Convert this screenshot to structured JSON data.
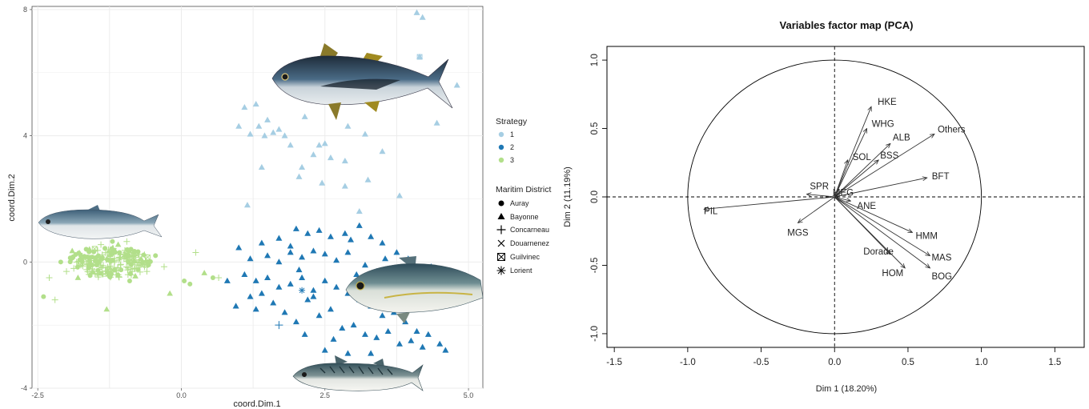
{
  "chart_data": [
    {
      "type": "scatter",
      "xlabel": "coord.Dim.1",
      "ylabel": "coord.Dim.2",
      "xlim": [
        -2.6,
        5.25
      ],
      "ylim": [
        -4,
        8.1
      ],
      "x_ticks": [
        "-2.5",
        "0.0",
        "2.5",
        "5.0"
      ],
      "x_tick_values": [
        -2.5,
        0,
        2.5,
        5
      ],
      "y_ticks": [
        "-4",
        "0",
        "4",
        "8"
      ],
      "y_tick_values": [
        -4,
        0,
        4,
        8
      ],
      "grid": true,
      "legend_position": "right",
      "colors": {
        "1": "#a6cee3",
        "2": "#1f78b4",
        "3": "#b2df8a"
      },
      "legends": [
        {
          "title": "Strategy",
          "entries": [
            "1",
            "2",
            "3"
          ]
        },
        {
          "title": "Maritim District",
          "entries": [
            "Auray",
            "Bayonne",
            "Concarneau",
            "Douarnenez",
            "Guilvinec",
            "Lorient"
          ]
        }
      ],
      "series": [
        {
          "strategy": "1",
          "points": [
            [
              4.1,
              7.9
            ],
            [
              4.2,
              7.75
            ],
            [
              4.15,
              6.5
            ],
            [
              4.8,
              5.6
            ],
            [
              4.45,
              4.4
            ],
            [
              1.3,
              5.0
            ],
            [
              1.1,
              4.9
            ],
            [
              1.5,
              4.5
            ],
            [
              1.35,
              4.3
            ],
            [
              1.7,
              4.2
            ],
            [
              1.6,
              4.1
            ],
            [
              1.2,
              4.05
            ],
            [
              1.45,
              4.0
            ],
            [
              1.8,
              4.0
            ],
            [
              2.15,
              4.6
            ],
            [
              2.9,
              4.3
            ],
            [
              3.2,
              4.05
            ],
            [
              1.0,
              4.3
            ],
            [
              1.9,
              3.7
            ],
            [
              2.4,
              3.7
            ],
            [
              2.5,
              3.75
            ],
            [
              2.3,
              3.4
            ],
            [
              2.6,
              3.3
            ],
            [
              2.85,
              3.2
            ],
            [
              3.5,
              3.5
            ],
            [
              1.4,
              3.0
            ],
            [
              2.1,
              3.0
            ],
            [
              2.05,
              2.7
            ],
            [
              2.45,
              2.5
            ],
            [
              2.85,
              2.4
            ],
            [
              3.25,
              2.6
            ],
            [
              3.8,
              2.1
            ],
            [
              1.15,
              1.8
            ],
            [
              3.1,
              1.6
            ]
          ]
        },
        {
          "strategy": "2",
          "points": [
            [
              0.8,
              -0.6
            ],
            [
              1.4,
              0.6
            ],
            [
              1.7,
              0.75
            ],
            [
              1.9,
              0.5
            ],
            [
              2.0,
              1.05
            ],
            [
              2.2,
              0.9
            ],
            [
              2.4,
              1.0
            ],
            [
              2.6,
              0.8
            ],
            [
              2.85,
              0.9
            ],
            [
              2.95,
              0.7
            ],
            [
              3.1,
              1.15
            ],
            [
              3.3,
              0.8
            ],
            [
              3.5,
              0.6
            ],
            [
              3.75,
              0.3
            ],
            [
              3.95,
              0.1
            ],
            [
              1.2,
              0.1
            ],
            [
              1.5,
              0.2
            ],
            [
              1.7,
              0.0
            ],
            [
              1.9,
              0.3
            ],
            [
              2.1,
              0.15
            ],
            [
              2.3,
              0.35
            ],
            [
              2.5,
              0.25
            ],
            [
              2.7,
              0.05
            ],
            [
              2.9,
              0.3
            ],
            [
              3.2,
              -0.1
            ],
            [
              3.4,
              -0.3
            ],
            [
              3.6,
              -0.5
            ],
            [
              3.8,
              -0.7
            ],
            [
              4.0,
              -0.9
            ],
            [
              4.3,
              -1.3
            ],
            [
              1.1,
              -0.4
            ],
            [
              1.3,
              -0.6
            ],
            [
              1.5,
              -0.5
            ],
            [
              1.7,
              -0.8
            ],
            [
              1.9,
              -0.7
            ],
            [
              2.1,
              -0.5
            ],
            [
              2.3,
              -0.9
            ],
            [
              2.5,
              -0.6
            ],
            [
              2.7,
              -0.8
            ],
            [
              2.9,
              -1.0
            ],
            [
              3.1,
              -1.2
            ],
            [
              3.3,
              -1.4
            ],
            [
              3.5,
              -1.7
            ],
            [
              3.7,
              -1.6
            ],
            [
              3.9,
              -1.9
            ],
            [
              4.1,
              -2.2
            ],
            [
              4.3,
              -2.3
            ],
            [
              4.5,
              -2.6
            ],
            [
              4.6,
              -2.8
            ],
            [
              1.2,
              -1.1
            ],
            [
              1.3,
              -1.5
            ],
            [
              1.6,
              -1.3
            ],
            [
              1.8,
              -1.6
            ],
            [
              2.0,
              -1.9
            ],
            [
              2.2,
              -1.2
            ],
            [
              2.4,
              -1.7
            ],
            [
              2.6,
              -1.5
            ],
            [
              2.8,
              -2.1
            ],
            [
              3.0,
              -2.0
            ],
            [
              3.2,
              -2.3
            ],
            [
              3.4,
              -2.4
            ],
            [
              3.6,
              -2.2
            ],
            [
              3.8,
              -2.6
            ],
            [
              4.0,
              -2.5
            ],
            [
              4.2,
              -2.7
            ],
            [
              2.5,
              -2.8
            ],
            [
              2.9,
              -2.9
            ],
            [
              3.3,
              -2.9
            ],
            [
              0.95,
              -1.4
            ],
            [
              1.0,
              0.45
            ],
            [
              1.4,
              -1.0
            ],
            [
              2.3,
              -1.1
            ],
            [
              3.05,
              -0.4
            ],
            [
              3.45,
              -1.05
            ],
            [
              3.55,
              0.1
            ],
            [
              4.35,
              -0.15
            ],
            [
              2.15,
              -2.3
            ],
            [
              2.65,
              -2.45
            ],
            [
              3.75,
              -1.25
            ],
            [
              2.05,
              -0.25
            ]
          ]
        },
        {
          "strategy": "3",
          "points": [
            [
              -2.4,
              -1.1
            ],
            [
              -2.2,
              -1.2
            ],
            [
              -1.3,
              -1.5
            ],
            [
              -0.9,
              -0.6
            ],
            [
              -0.6,
              -0.3
            ],
            [
              -0.2,
              -1.0
            ],
            [
              0.15,
              -0.7
            ],
            [
              0.25,
              0.3
            ],
            [
              0.4,
              -0.35
            ],
            [
              0.55,
              -0.5
            ],
            [
              0.65,
              -0.5
            ],
            [
              -0.7,
              0.1
            ],
            [
              -0.5,
              1.0
            ],
            [
              -0.95,
              0.65
            ],
            [
              -1.1,
              0.55
            ],
            [
              -1.05,
              -0.25
            ],
            [
              -2.0,
              -0.3
            ],
            [
              -1.8,
              -0.5
            ],
            [
              -2.1,
              0.0
            ],
            [
              -2.3,
              -0.5
            ],
            [
              -1.9,
              0.35
            ],
            [
              -1.2,
              0.65
            ],
            [
              -1.4,
              0.55
            ],
            [
              -1.6,
              0.4
            ],
            [
              -0.45,
              0.2
            ],
            [
              -0.3,
              -0.15
            ],
            [
              -0.8,
              -0.45
            ],
            [
              0.05,
              -0.6
            ],
            [
              -1.75,
              -0.1
            ],
            [
              -1.55,
              -0.3
            ]
          ]
        }
      ],
      "cluster_3": {
        "cx": -1.25,
        "cy": 0.0,
        "rx": 0.72,
        "ry": 0.5,
        "n": 210,
        "seed": 7
      }
    },
    {
      "type": "scatter",
      "title": "Variables factor map (PCA)",
      "xlabel": "Dim 1 (18.20%)",
      "ylabel": "Dim 2 (11.19%)",
      "xlim": [
        -1.55,
        1.7
      ],
      "ylim": [
        -1.1,
        1.1
      ],
      "x_ticks": [
        "-1.5",
        "-1.0",
        "-0.5",
        "0.0",
        "0.5",
        "1.0",
        "1.5"
      ],
      "x_tick_values": [
        -1.5,
        -1.0,
        -0.5,
        0.0,
        0.5,
        1.0,
        1.5
      ],
      "y_ticks": [
        "-1.0",
        "-0.5",
        "0.0",
        "0.5",
        "1.0"
      ],
      "y_tick_values": [
        -1.0,
        -0.5,
        0.0,
        0.5,
        1.0
      ],
      "unit_circle": true,
      "variables": [
        {
          "name": "HKE",
          "x": 0.25,
          "y": 0.66
        },
        {
          "name": "WHG",
          "x": 0.22,
          "y": 0.5
        },
        {
          "name": "Others",
          "x": 0.68,
          "y": 0.46
        },
        {
          "name": "ALB",
          "x": 0.38,
          "y": 0.39
        },
        {
          "name": "BSS",
          "x": 0.3,
          "y": 0.27
        },
        {
          "name": "SOL",
          "x": 0.09,
          "y": 0.27
        },
        {
          "name": "BFT",
          "x": 0.63,
          "y": 0.14
        },
        {
          "name": "SPR",
          "x": -0.19,
          "y": 0.02
        },
        {
          "name": "MEG",
          "x": 0.02,
          "y": 0.01
        },
        {
          "name": "ANE",
          "x": 0.11,
          "y": -0.03
        },
        {
          "name": "PIL",
          "x": -0.89,
          "y": -0.09
        },
        {
          "name": "MGS",
          "x": -0.25,
          "y": -0.19
        },
        {
          "name": "HMM",
          "x": 0.53,
          "y": -0.26
        },
        {
          "name": "Dorade",
          "x": 0.38,
          "y": -0.42
        },
        {
          "name": "MAS",
          "x": 0.65,
          "y": -0.43
        },
        {
          "name": "HOM",
          "x": 0.48,
          "y": -0.52
        },
        {
          "name": "BOG",
          "x": 0.65,
          "y": -0.52
        }
      ]
    }
  ]
}
